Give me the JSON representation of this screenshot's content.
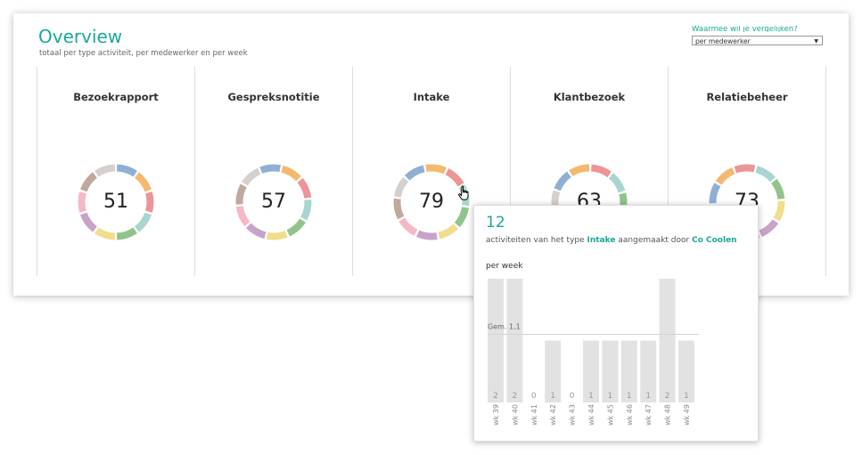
{
  "header": {
    "title": "Overview",
    "subtitle": "totaal per type activiteit, per medewerker en per week",
    "compare_label": "Waarmee wil je vergelijken?",
    "compare_value": "per medewerker"
  },
  "panels": [
    {
      "title": "Bezoekrapport",
      "total": "51"
    },
    {
      "title": "Gespreksnotitie",
      "total": "57"
    },
    {
      "title": "Intake",
      "total": "79"
    },
    {
      "title": "Klantbezoek",
      "total": "63"
    },
    {
      "title": "Relatiebeheer",
      "total": "73"
    }
  ],
  "colors": {
    "accent": "#1aa89a",
    "palette": [
      "#8fb0d4",
      "#f4b96f",
      "#ec9596",
      "#a8d5d0",
      "#91c48a",
      "#f2dd8b",
      "#c8a3c9",
      "#f6b8c4",
      "#c1a89c",
      "#d6d0cc"
    ]
  },
  "tooltip": {
    "count": "12",
    "desc_prefix": "activiteiten van het type",
    "type": "Intake",
    "desc_mid": "aangemaakt door",
    "person": "Co Coolen",
    "subtitle": "per week",
    "avg_label": "Gem. 1,1",
    "chart_data": {
      "type": "bar",
      "categories": [
        "wk 39",
        "wk 40",
        "wk 41",
        "wk 42",
        "wk 43",
        "wk 44",
        "wk 45",
        "wk 46",
        "wk 47",
        "wk 48",
        "wk 49"
      ],
      "values": [
        2,
        2,
        0,
        1,
        0,
        1,
        1,
        1,
        1,
        2,
        1
      ],
      "reference_line": 1.1,
      "ylim": [
        0,
        2
      ]
    }
  }
}
